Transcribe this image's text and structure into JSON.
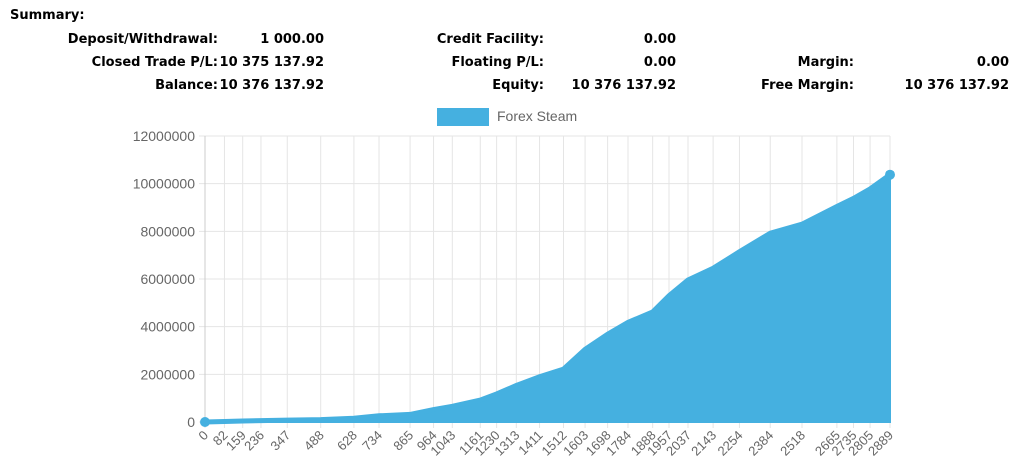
{
  "summary": {
    "title": "Summary:",
    "col1": [
      {
        "label": "Deposit/Withdrawal:",
        "value": "1 000.00"
      },
      {
        "label": "Closed Trade P/L:",
        "value": "10 375 137.92"
      },
      {
        "label": "Balance:",
        "value": "10 376 137.92"
      }
    ],
    "col2": [
      {
        "label": "Credit Facility:",
        "value": "0.00"
      },
      {
        "label": "Floating P/L:",
        "value": "0.00"
      },
      {
        "label": "Equity:",
        "value": "10 376 137.92"
      }
    ],
    "col3": [
      {
        "label": "Margin:",
        "value": "0.00"
      },
      {
        "label": "Free Margin:",
        "value": "10 376 137.92"
      }
    ]
  },
  "colors": {
    "series": "#45b0e0",
    "grid": "#e5e5e5",
    "axis": "#666666"
  },
  "chart_data": {
    "type": "area",
    "legend": {
      "position": "top-center",
      "entries": [
        "Forex Steam"
      ]
    },
    "ylim": [
      0,
      12000000
    ],
    "yticks": [
      0,
      2000000,
      4000000,
      6000000,
      8000000,
      10000000,
      12000000
    ],
    "xlim": [
      0,
      2889
    ],
    "xticks": [
      0,
      82,
      159,
      236,
      347,
      488,
      628,
      734,
      865,
      964,
      1043,
      1161,
      1230,
      1313,
      1411,
      1512,
      1603,
      1698,
      1784,
      1888,
      1957,
      2037,
      2143,
      2254,
      2384,
      2518,
      2665,
      2735,
      2805,
      2889
    ],
    "grid": true,
    "series": [
      {
        "name": "Forex Steam",
        "x": [
          0,
          82,
          159,
          236,
          347,
          488,
          628,
          734,
          865,
          964,
          1043,
          1161,
          1230,
          1313,
          1411,
          1512,
          1603,
          1698,
          1784,
          1888,
          1957,
          2037,
          2143,
          2254,
          2384,
          2518,
          2665,
          2735,
          2805,
          2889
        ],
        "values": [
          1000,
          20000,
          40000,
          60000,
          80000,
          100000,
          160000,
          260000,
          320000,
          520000,
          660000,
          920000,
          1180000,
          1530000,
          1900000,
          2220000,
          3050000,
          3680000,
          4180000,
          4620000,
          5300000,
          5960000,
          6450000,
          7140000,
          7920000,
          8300000,
          9040000,
          9380000,
          9780000,
          10376137.92
        ]
      }
    ]
  }
}
